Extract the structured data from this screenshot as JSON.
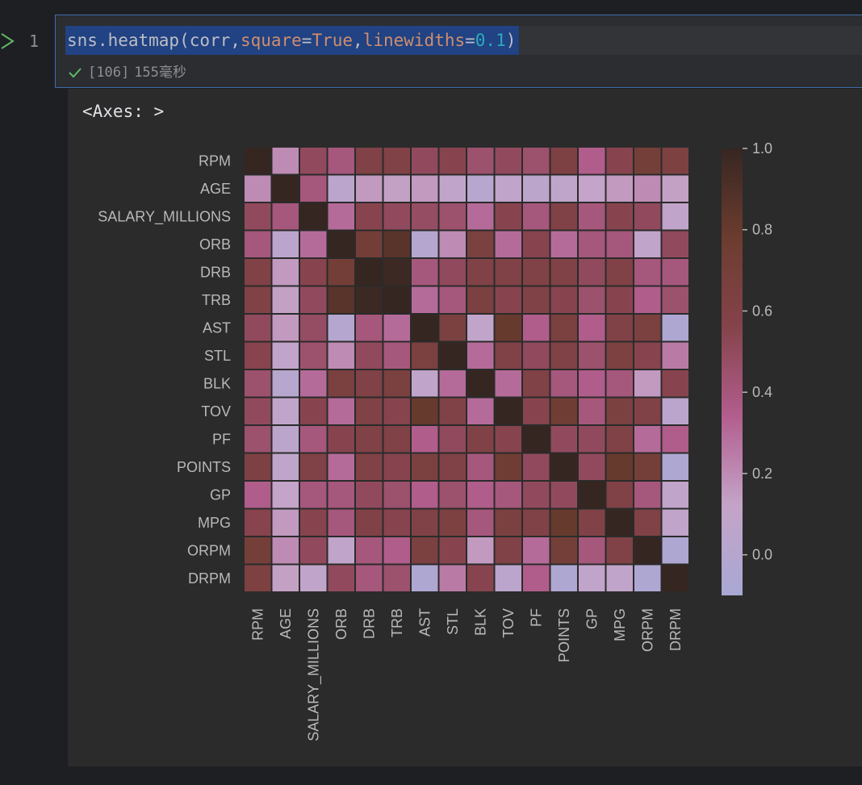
{
  "editor": {
    "line_number": "1",
    "code": {
      "prefix": "sns.heatmap(corr,",
      "param1_name": "square",
      "eq1": "=",
      "param1_value": "True",
      "comma": ",",
      "param2_name": "linewidths",
      "eq2": "=",
      "param2_value": "0.1",
      "suffix": ")"
    },
    "status": {
      "exec_count": "[106]",
      "duration": "155毫秒"
    }
  },
  "output": {
    "repr_text": "<Axes: >"
  },
  "colors": {
    "accent": "#3d6ea8",
    "selection": "#214283",
    "success": "#5fb865"
  },
  "icons": {
    "run": "play-outline-icon",
    "status": "check-icon"
  },
  "chart_data": {
    "type": "heatmap",
    "labels": [
      "RPM",
      "AGE",
      "SALARY_MILLIONS",
      "ORB",
      "DRB",
      "TRB",
      "AST",
      "STL",
      "BLK",
      "TOV",
      "PF",
      "POINTS",
      "GP",
      "MPG",
      "ORPM",
      "DRPM"
    ],
    "matrix": [
      [
        1.0,
        0.2,
        0.5,
        0.4,
        0.6,
        0.6,
        0.5,
        0.55,
        0.45,
        0.5,
        0.45,
        0.62,
        0.35,
        0.55,
        0.7,
        0.63
      ],
      [
        0.2,
        1.0,
        0.4,
        0.05,
        0.15,
        0.13,
        0.15,
        0.1,
        0.02,
        0.1,
        0.06,
        0.08,
        0.12,
        0.15,
        0.2,
        0.13
      ],
      [
        0.5,
        0.4,
        1.0,
        0.3,
        0.55,
        0.5,
        0.48,
        0.45,
        0.3,
        0.55,
        0.4,
        0.6,
        0.4,
        0.55,
        0.5,
        0.1
      ],
      [
        0.4,
        0.05,
        0.3,
        1.0,
        0.72,
        0.86,
        0.0,
        0.2,
        0.65,
        0.3,
        0.55,
        0.3,
        0.4,
        0.4,
        0.1,
        0.5
      ],
      [
        0.6,
        0.15,
        0.55,
        0.72,
        1.0,
        0.97,
        0.4,
        0.5,
        0.6,
        0.6,
        0.6,
        0.6,
        0.5,
        0.6,
        0.4,
        0.4
      ],
      [
        0.6,
        0.13,
        0.5,
        0.86,
        0.97,
        1.0,
        0.3,
        0.4,
        0.65,
        0.55,
        0.6,
        0.55,
        0.45,
        0.55,
        0.35,
        0.45
      ],
      [
        0.5,
        0.15,
        0.48,
        0.0,
        0.4,
        0.3,
        1.0,
        0.65,
        0.1,
        0.8,
        0.35,
        0.65,
        0.35,
        0.6,
        0.65,
        -0.05
      ],
      [
        0.55,
        0.1,
        0.45,
        0.2,
        0.5,
        0.4,
        0.65,
        1.0,
        0.3,
        0.6,
        0.5,
        0.6,
        0.45,
        0.63,
        0.55,
        0.25
      ],
      [
        0.45,
        0.02,
        0.3,
        0.65,
        0.6,
        0.65,
        0.1,
        0.3,
        1.0,
        0.3,
        0.6,
        0.4,
        0.35,
        0.4,
        0.15,
        0.55
      ],
      [
        0.5,
        0.1,
        0.55,
        0.3,
        0.6,
        0.55,
        0.8,
        0.6,
        0.3,
        1.0,
        0.55,
        0.75,
        0.4,
        0.65,
        0.6,
        0.05
      ],
      [
        0.45,
        0.06,
        0.4,
        0.55,
        0.6,
        0.6,
        0.35,
        0.5,
        0.6,
        0.55,
        1.0,
        0.5,
        0.5,
        0.6,
        0.3,
        0.35
      ],
      [
        0.62,
        0.08,
        0.6,
        0.3,
        0.6,
        0.55,
        0.65,
        0.6,
        0.4,
        0.75,
        0.5,
        1.0,
        0.5,
        0.8,
        0.7,
        -0.05
      ],
      [
        0.35,
        0.12,
        0.4,
        0.4,
        0.5,
        0.45,
        0.35,
        0.45,
        0.35,
        0.4,
        0.5,
        0.5,
        1.0,
        0.6,
        0.4,
        0.1
      ],
      [
        0.55,
        0.15,
        0.55,
        0.4,
        0.6,
        0.55,
        0.6,
        0.63,
        0.4,
        0.65,
        0.6,
        0.8,
        0.6,
        1.0,
        0.6,
        0.1
      ],
      [
        0.7,
        0.2,
        0.5,
        0.1,
        0.4,
        0.35,
        0.65,
        0.55,
        0.15,
        0.6,
        0.3,
        0.7,
        0.4,
        0.6,
        1.0,
        -0.05
      ],
      [
        0.63,
        0.13,
        0.1,
        0.5,
        0.4,
        0.45,
        -0.05,
        0.25,
        0.55,
        0.05,
        0.35,
        -0.05,
        0.1,
        0.1,
        -0.05,
        1.0
      ]
    ],
    "vmin": -0.1,
    "vmax": 1.0,
    "colorbar_ticks": [
      "1.0",
      "0.8",
      "0.6",
      "0.4",
      "0.2",
      "0.0"
    ],
    "square": true,
    "linewidths": 0.1
  }
}
